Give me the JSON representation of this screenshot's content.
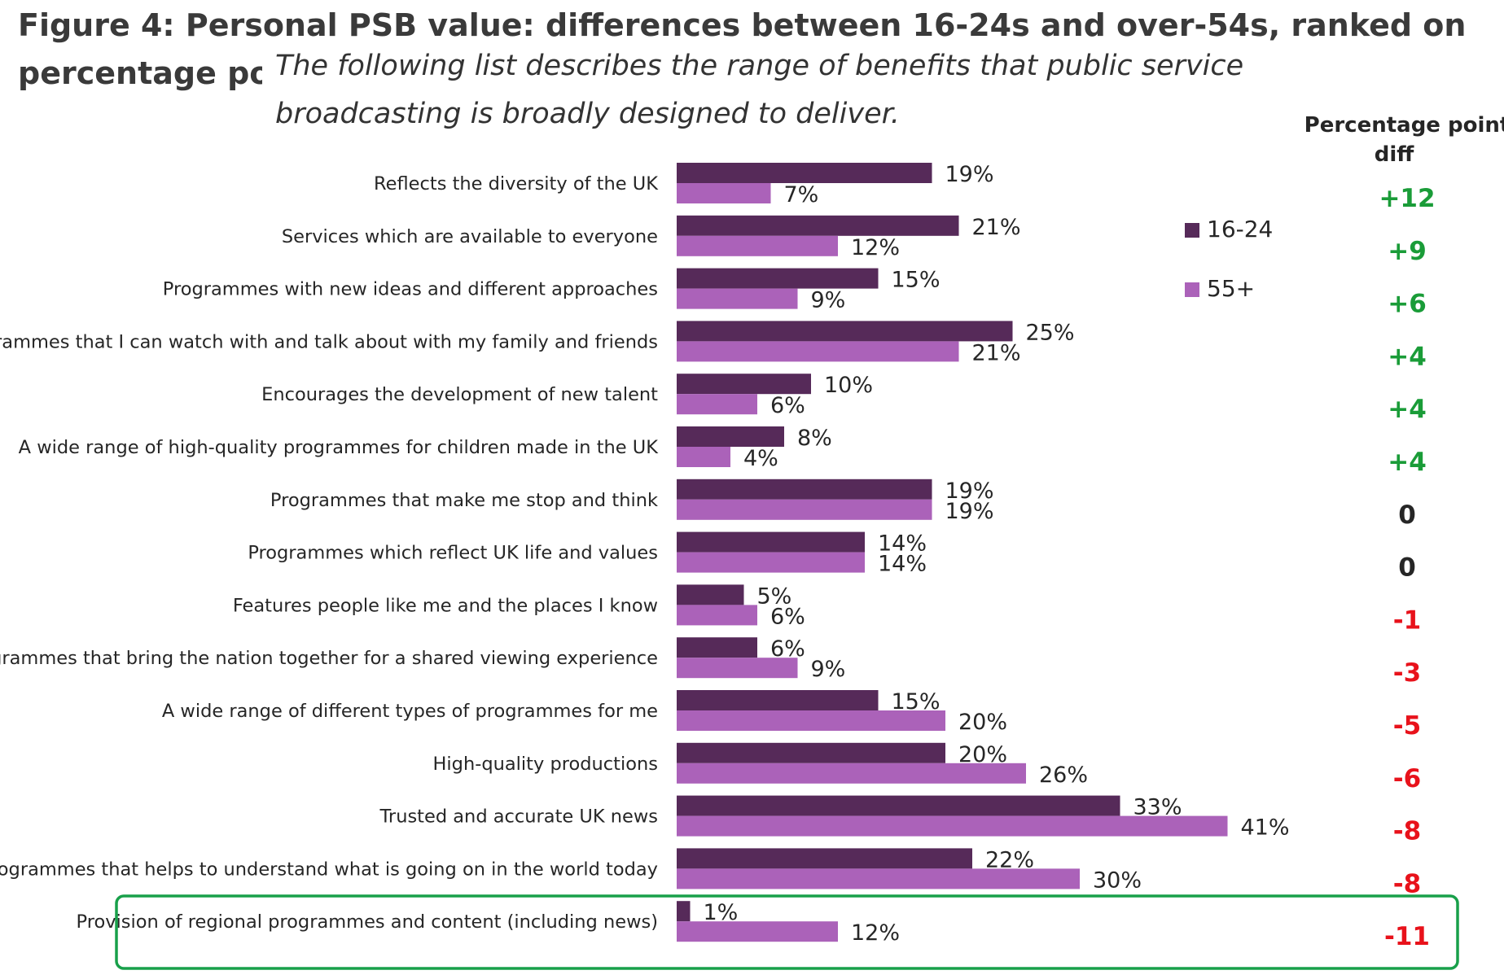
{
  "figure": {
    "title": "Figure 4: Personal PSB value: differences between 16-24s and over-54s, ranked on percentage point differ",
    "subtitle": "The following list describes the range of benefits that public service broadcasting is broadly designed to  deliver."
  },
  "colors": {
    "series_16_24": "#562a59",
    "series_55_plus": "#ab62b9",
    "positive": "#1a9c38",
    "zero": "#262626",
    "negative": "#e8121b",
    "highlight_border": "#18a04a"
  },
  "chart_data": {
    "type": "bar",
    "orientation": "horizontal",
    "categories": [
      "Reflects the diversity of the UK",
      "Services which are available to everyone",
      "Programmes with new ideas and different approaches",
      "Programmes that I can watch with and talk about with my family and friends",
      "Encourages the development of new talent",
      "A wide range of high-quality programmes for children made in the UK",
      "Programmes that make me stop and think",
      "Programmes which reflect UK life and values",
      "Features people like me and the places I know",
      "Programmes that bring the nation together for a shared viewing experience",
      "A wide range of different types of programmes for me",
      "High-quality productions",
      "Trusted and accurate UK news",
      "Programmes that helps to understand what is going on in the world today",
      "Provision of regional programmes and content (including news)"
    ],
    "series": [
      {
        "name": "16-24",
        "values": [
          19,
          21,
          15,
          25,
          10,
          8,
          19,
          14,
          5,
          6,
          15,
          20,
          33,
          22,
          1
        ]
      },
      {
        "name": "55+",
        "values": [
          7,
          12,
          9,
          21,
          6,
          4,
          19,
          14,
          6,
          9,
          20,
          26,
          41,
          30,
          12
        ]
      }
    ],
    "value_labels": {
      "16-24": [
        "19%",
        "21%",
        "15%",
        "25%",
        "10%",
        "8%",
        "19%",
        "14%",
        "5%",
        "6%",
        "15%",
        "20%",
        "33%",
        "22%",
        "1%"
      ],
      "55+": [
        "7%",
        "12%",
        "9%",
        "21%",
        "6%",
        "4%",
        "19%",
        "14%",
        "6%",
        "9%",
        "20%",
        "26%",
        "41%",
        "30%",
        "12%"
      ]
    },
    "diff_header": [
      "Percentage point",
      "diff"
    ],
    "diffs": [
      "+12",
      "+9",
      "+6",
      "+4",
      "+4",
      "+4",
      "0",
      "0",
      "-1",
      "-3",
      "-5",
      "-6",
      "-8",
      "-8",
      "-11"
    ],
    "legend": [
      "16-24",
      "55+"
    ],
    "legend_placement": "right",
    "highlighted_category": "Provision of regional programmes and content (including news)",
    "grid": false
  }
}
